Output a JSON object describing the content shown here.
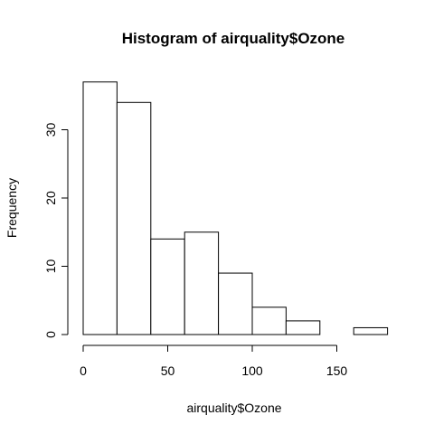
{
  "chart_data": {
    "type": "bar",
    "title": "Histogram of airquality$Ozone",
    "xlabel": "airquality$Ozone",
    "ylabel": "Frequency",
    "bins": [
      {
        "from": 0,
        "to": 20,
        "count": 37
      },
      {
        "from": 20,
        "to": 40,
        "count": 34
      },
      {
        "from": 40,
        "to": 60,
        "count": 14
      },
      {
        "from": 60,
        "to": 80,
        "count": 15
      },
      {
        "from": 80,
        "to": 100,
        "count": 9
      },
      {
        "from": 100,
        "to": 120,
        "count": 4
      },
      {
        "from": 120,
        "to": 140,
        "count": 2
      },
      {
        "from": 140,
        "to": 160,
        "count": 0
      },
      {
        "from": 160,
        "to": 180,
        "count": 1
      }
    ],
    "xlim": [
      0,
      180
    ],
    "ylim": [
      0,
      37
    ],
    "x_ticks": [
      "0",
      "50",
      "100",
      "150"
    ],
    "y_ticks": [
      "0",
      "10",
      "20",
      "30"
    ],
    "grid": false,
    "legend": "none"
  }
}
